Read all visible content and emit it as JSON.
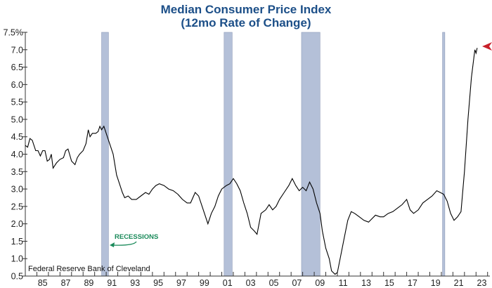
{
  "chart_data": {
    "type": "line",
    "title": "Median Consumer Price Index",
    "subtitle": "(12mo Rate of Change)",
    "ylim": [
      0.5,
      7.5
    ],
    "xlim": [
      1984.0,
      2024.2
    ],
    "yticks": [
      "0.5",
      "1.0",
      "1.5",
      "2.0",
      "2.5",
      "3.0",
      "3.5",
      "4.0",
      "4.5",
      "5.0",
      "5.5",
      "6.0",
      "6.5",
      "7.0",
      "7.5%"
    ],
    "yvalues": [
      0.5,
      1.0,
      1.5,
      2.0,
      2.5,
      3.0,
      3.5,
      4.0,
      4.5,
      5.0,
      5.5,
      6.0,
      6.5,
      7.0,
      7.5
    ],
    "xticks": [
      "85",
      "87",
      "89",
      "91",
      "93",
      "95",
      "97",
      "99",
      "01",
      "03",
      "05",
      "07",
      "09",
      "11",
      "13",
      "15",
      "17",
      "19",
      "21",
      "23"
    ],
    "xtick_years": [
      1985,
      1987,
      1989,
      1991,
      1993,
      1995,
      1997,
      1999,
      2001,
      2003,
      2005,
      2007,
      2009,
      2011,
      2013,
      2015,
      2017,
      2019,
      2021,
      2023
    ],
    "grid": false,
    "series_color": "#000000",
    "recession_color": "#b4c0d8",
    "recessions": [
      [
        1990.6,
        1991.2
      ],
      [
        2001.2,
        2001.9
      ],
      [
        2007.9,
        2009.5
      ],
      [
        2020.1,
        2020.3
      ]
    ],
    "recession_label": "RECESSIONS",
    "annotation_color": "#1a8a5a",
    "latest_marker_color": "#c8202a",
    "source": "Federal Reserve Bank of Cleveland",
    "points": [
      [
        1984.0,
        4.25
      ],
      [
        1984.2,
        4.2
      ],
      [
        1984.4,
        4.45
      ],
      [
        1984.6,
        4.4
      ],
      [
        1984.9,
        4.1
      ],
      [
        1985.1,
        4.1
      ],
      [
        1985.3,
        3.95
      ],
      [
        1985.5,
        4.1
      ],
      [
        1985.7,
        4.1
      ],
      [
        1985.9,
        3.8
      ],
      [
        1986.1,
        3.85
      ],
      [
        1986.25,
        4.0
      ],
      [
        1986.4,
        3.6
      ],
      [
        1986.7,
        3.75
      ],
      [
        1987.0,
        3.85
      ],
      [
        1987.3,
        3.9
      ],
      [
        1987.5,
        4.1
      ],
      [
        1987.7,
        4.15
      ],
      [
        1988.0,
        3.8
      ],
      [
        1988.3,
        3.7
      ],
      [
        1988.5,
        3.9
      ],
      [
        1988.7,
        4.0
      ],
      [
        1989.0,
        4.1
      ],
      [
        1989.25,
        4.3
      ],
      [
        1989.45,
        4.7
      ],
      [
        1989.6,
        4.5
      ],
      [
        1989.8,
        4.6
      ],
      [
        1990.1,
        4.6
      ],
      [
        1990.3,
        4.65
      ],
      [
        1990.45,
        4.8
      ],
      [
        1990.6,
        4.7
      ],
      [
        1990.8,
        4.8
      ],
      [
        1991.0,
        4.6
      ],
      [
        1991.2,
        4.4
      ],
      [
        1991.4,
        4.2
      ],
      [
        1991.6,
        4.0
      ],
      [
        1991.9,
        3.4
      ],
      [
        1992.1,
        3.2
      ],
      [
        1992.4,
        2.9
      ],
      [
        1992.6,
        2.75
      ],
      [
        1992.9,
        2.8
      ],
      [
        1993.2,
        2.7
      ],
      [
        1993.6,
        2.7
      ],
      [
        1994.0,
        2.8
      ],
      [
        1994.4,
        2.9
      ],
      [
        1994.7,
        2.85
      ],
      [
        1995.0,
        3.0
      ],
      [
        1995.3,
        3.1
      ],
      [
        1995.6,
        3.15
      ],
      [
        1996.0,
        3.1
      ],
      [
        1996.4,
        3.0
      ],
      [
        1996.8,
        2.95
      ],
      [
        1997.2,
        2.85
      ],
      [
        1997.6,
        2.7
      ],
      [
        1998.0,
        2.6
      ],
      [
        1998.3,
        2.6
      ],
      [
        1998.7,
        2.9
      ],
      [
        1999.0,
        2.8
      ],
      [
        1999.3,
        2.5
      ],
      [
        1999.6,
        2.2
      ],
      [
        1999.8,
        2.0
      ],
      [
        2000.1,
        2.3
      ],
      [
        2000.4,
        2.5
      ],
      [
        2000.7,
        2.8
      ],
      [
        2001.0,
        3.0
      ],
      [
        2001.4,
        3.1
      ],
      [
        2001.7,
        3.15
      ],
      [
        2002.0,
        3.3
      ],
      [
        2002.3,
        3.15
      ],
      [
        2002.6,
        2.95
      ],
      [
        2002.9,
        2.6
      ],
      [
        2003.2,
        2.3
      ],
      [
        2003.5,
        1.9
      ],
      [
        2003.8,
        1.8
      ],
      [
        2004.05,
        1.7
      ],
      [
        2004.4,
        2.3
      ],
      [
        2004.8,
        2.4
      ],
      [
        2005.1,
        2.55
      ],
      [
        2005.4,
        2.4
      ],
      [
        2005.7,
        2.5
      ],
      [
        2006.0,
        2.7
      ],
      [
        2006.4,
        2.9
      ],
      [
        2006.8,
        3.1
      ],
      [
        2007.1,
        3.3
      ],
      [
        2007.4,
        3.1
      ],
      [
        2007.7,
        2.95
      ],
      [
        2008.0,
        3.05
      ],
      [
        2008.3,
        2.95
      ],
      [
        2008.6,
        3.2
      ],
      [
        2008.9,
        3.0
      ],
      [
        2009.2,
        2.6
      ],
      [
        2009.5,
        2.3
      ],
      [
        2009.7,
        1.8
      ],
      [
        2010.0,
        1.3
      ],
      [
        2010.3,
        1.0
      ],
      [
        2010.5,
        0.65
      ],
      [
        2010.8,
        0.55
      ],
      [
        2011.0,
        0.6
      ],
      [
        2011.3,
        1.1
      ],
      [
        2011.6,
        1.6
      ],
      [
        2011.9,
        2.1
      ],
      [
        2012.2,
        2.35
      ],
      [
        2012.5,
        2.3
      ],
      [
        2012.9,
        2.2
      ],
      [
        2013.3,
        2.1
      ],
      [
        2013.7,
        2.05
      ],
      [
        2014.0,
        2.15
      ],
      [
        2014.3,
        2.25
      ],
      [
        2014.7,
        2.2
      ],
      [
        2015.0,
        2.2
      ],
      [
        2015.4,
        2.3
      ],
      [
        2015.8,
        2.35
      ],
      [
        2016.2,
        2.45
      ],
      [
        2016.6,
        2.55
      ],
      [
        2017.0,
        2.7
      ],
      [
        2017.3,
        2.4
      ],
      [
        2017.6,
        2.3
      ],
      [
        2018.0,
        2.4
      ],
      [
        2018.4,
        2.6
      ],
      [
        2018.8,
        2.7
      ],
      [
        2019.2,
        2.8
      ],
      [
        2019.6,
        2.95
      ],
      [
        2019.9,
        2.9
      ],
      [
        2020.2,
        2.85
      ],
      [
        2020.5,
        2.65
      ],
      [
        2020.8,
        2.3
      ],
      [
        2021.1,
        2.1
      ],
      [
        2021.4,
        2.2
      ],
      [
        2021.7,
        2.35
      ],
      [
        2022.0,
        3.5
      ],
      [
        2022.3,
        5.0
      ],
      [
        2022.6,
        6.2
      ],
      [
        2022.9,
        7.0
      ],
      [
        2023.0,
        6.9
      ],
      [
        2023.1,
        7.05
      ]
    ]
  }
}
